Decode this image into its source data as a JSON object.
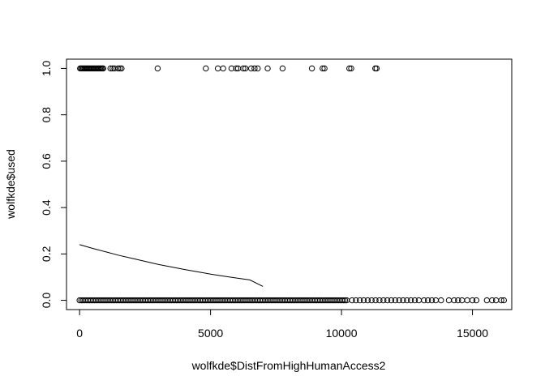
{
  "chart_data": {
    "type": "scatter",
    "title": "",
    "xlabel": "wolfkde$DistFromHighHumanAccess2",
    "ylabel": "wolfkde$used",
    "xlim": [
      -500,
      16500
    ],
    "ylim": [
      -0.04,
      1.04
    ],
    "x_ticks": [
      0,
      5000,
      10000,
      15000
    ],
    "x_tick_labels": [
      "0",
      "5000",
      "10000",
      "15000"
    ],
    "y_ticks": [
      0.0,
      0.2,
      0.4,
      0.6,
      0.8,
      1.0
    ],
    "y_tick_labels": [
      "0.0",
      "0.2",
      "0.4",
      "0.6",
      "0.8",
      "1.0"
    ],
    "grid": false,
    "series": [
      {
        "kind": "points",
        "marker": "open-circle",
        "y_value": 1,
        "x": [
          20,
          60,
          100,
          140,
          180,
          220,
          260,
          300,
          340,
          380,
          420,
          460,
          500,
          540,
          580,
          620,
          660,
          700,
          740,
          780,
          820,
          860,
          900,
          1180,
          1260,
          1330,
          1470,
          1540,
          1600,
          2980,
          4820,
          5280,
          5480,
          5800,
          5980,
          6050,
          6250,
          6330,
          6550,
          6680,
          6800,
          7180,
          7750,
          8870,
          9280,
          9350,
          10300,
          10370,
          11290,
          11340
        ]
      },
      {
        "kind": "points-band",
        "marker": "open-circle",
        "y_value": 0,
        "x_dense_range": [
          0,
          10200
        ],
        "x_sparse": [
          10400,
          10550,
          10700,
          10850,
          11000,
          11150,
          11300,
          11450,
          11600,
          11750,
          11900,
          12050,
          12200,
          12350,
          12500,
          12650,
          12800,
          12950,
          13150,
          13300,
          13450,
          13600,
          13800,
          14100,
          14300,
          14450,
          14600,
          14800,
          15000,
          15150,
          15550,
          15750,
          15900,
          16100,
          16200
        ]
      },
      {
        "kind": "line",
        "x": [
          0,
          500,
          1000,
          1500,
          2000,
          2500,
          3000,
          3500,
          4000,
          4500,
          5000,
          5500,
          6000,
          6500,
          7000
        ],
        "y": [
          0.24,
          0.224,
          0.209,
          0.194,
          0.181,
          0.168,
          0.155,
          0.144,
          0.133,
          0.123,
          0.113,
          0.104,
          0.096,
          0.088,
          0.06
        ]
      }
    ]
  }
}
